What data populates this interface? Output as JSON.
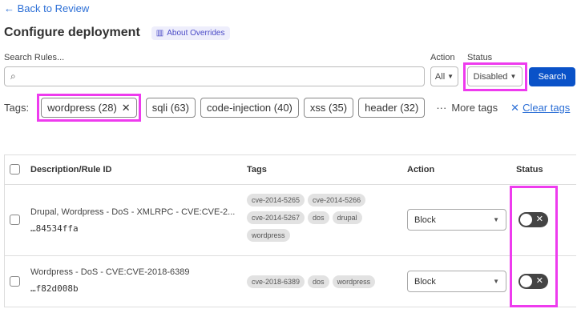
{
  "nav": {
    "back_label": "← Back to Review"
  },
  "header": {
    "title": "Configure deployment",
    "about_label": "About Overrides"
  },
  "filters": {
    "search_label": "Search Rules...",
    "search_value": "",
    "action_label": "Action",
    "action_value": "All",
    "status_label": "Status",
    "status_value": "Disabled",
    "search_button": "Search"
  },
  "tags": {
    "label": "Tags:",
    "chips": [
      {
        "label": "wordpress (28)",
        "selected": true
      },
      {
        "label": "sqli (63)"
      },
      {
        "label": "code-injection (40)"
      },
      {
        "label": "xss (35)"
      },
      {
        "label": "header (32)"
      }
    ],
    "more_label": "More tags",
    "clear_label": "Clear tags"
  },
  "table": {
    "headers": [
      "Description/Rule ID",
      "Tags",
      "Action",
      "Status"
    ],
    "rows": [
      {
        "description": "Drupal, Wordpress - DoS - XMLRPC - CVE:CVE-2...",
        "rule_id": "…84534ffa",
        "tags": [
          "cve-2014-5265",
          "cve-2014-5266",
          "cve-2014-5267",
          "dos",
          "drupal",
          "wordpress"
        ],
        "action": "Block",
        "enabled": false
      },
      {
        "description": "Wordpress - DoS - CVE:CVE-2018-6389",
        "rule_id": "…f82d008b",
        "tags": [
          "cve-2018-6389",
          "dos",
          "wordpress"
        ],
        "action": "Block",
        "enabled": false
      }
    ]
  },
  "colors": {
    "accent": "#0a52c8",
    "highlight": "#ee3bee",
    "link": "#2c6fd6"
  }
}
